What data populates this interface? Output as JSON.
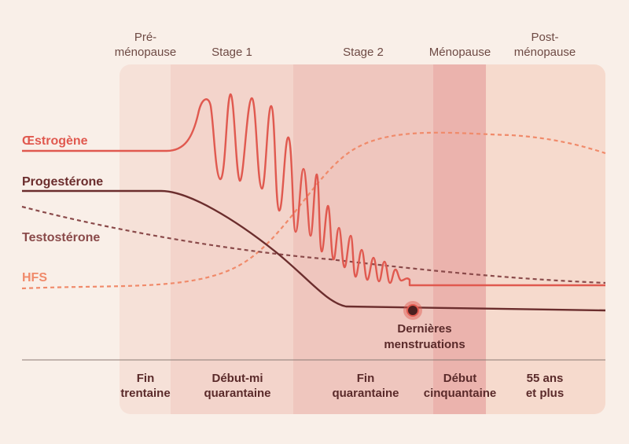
{
  "stages": [
    {
      "lines": [
        "Pré-",
        "ménopause"
      ]
    },
    {
      "lines": [
        "Stage 1"
      ]
    },
    {
      "lines": [
        "Stage 2"
      ]
    },
    {
      "lines": [
        "Ménopause"
      ]
    },
    {
      "lines": [
        "Post-",
        "ménopause"
      ]
    }
  ],
  "hormones": [
    "Œstrogène",
    "Progestérone",
    "Testostérone",
    "HFS"
  ],
  "marker": [
    "Dernières",
    "menstruations"
  ],
  "ages": [
    [
      "Fin",
      "trentaine"
    ],
    [
      "Début-mi",
      "quarantaine"
    ],
    [
      "Fin",
      "quarantaine"
    ],
    [
      "Début",
      "cinquantaine"
    ],
    [
      "55 ans",
      "et plus"
    ]
  ]
}
